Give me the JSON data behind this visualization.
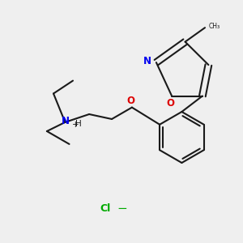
{
  "background_color": "#efefef",
  "bond_color": "#1a1a1a",
  "nitrogen_color": "#0000ee",
  "oxygen_color": "#dd0000",
  "chlorine_color": "#00aa00",
  "line_width": 1.5,
  "title": "",
  "cl_label": "Cl",
  "n_label": "N",
  "o_isox_label": "O",
  "o_ether_label": "O",
  "h_label": "H"
}
